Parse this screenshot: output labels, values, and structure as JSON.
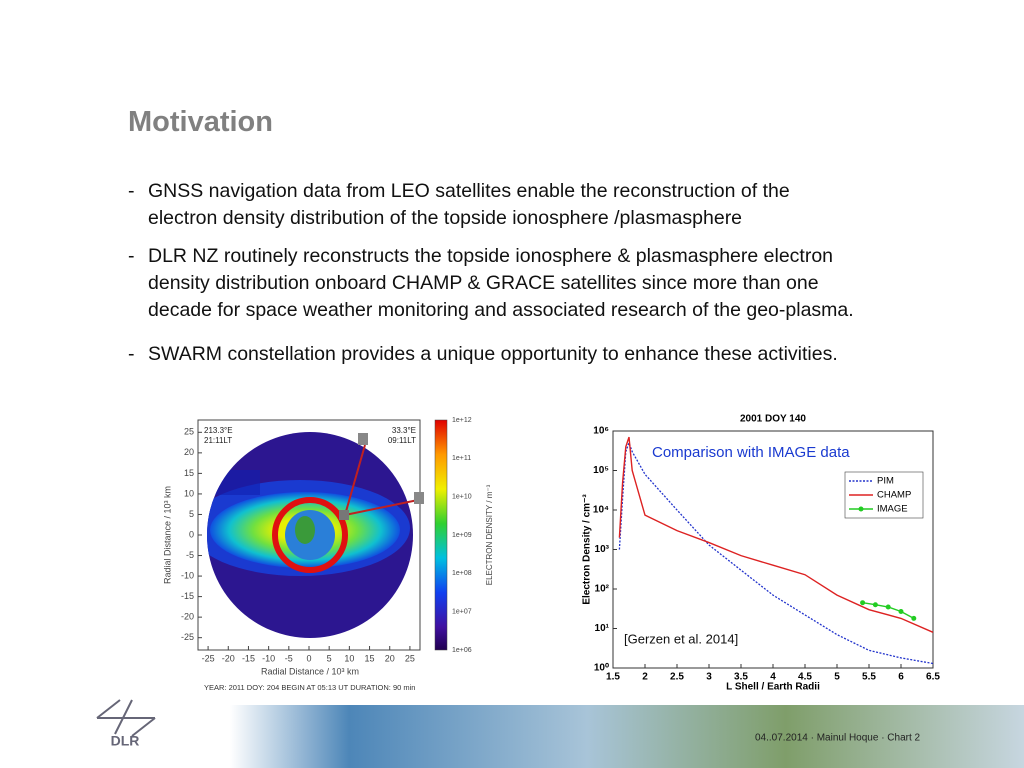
{
  "slide": {
    "title": "Motivation",
    "bullets": [
      [
        "GNSS navigation data from LEO satellites enable the reconstruction of the",
        "electron density distribution of  the topside ionosphere /plasmasphere"
      ],
      [
        "DLR NZ routinely reconstructs the topside ionosphere & plasmasphere electron",
        "density distribution onboard  CHAMP & GRACE satellites since more than one",
        "decade for space weather monitoring and associated research of the geo-plasma."
      ],
      [
        "SWARM constellation provides a unique opportunity to enhance these activities."
      ]
    ],
    "logo": "DLR",
    "footer": "04..07.2014 ·  Mainul Hoque ·  Chart 2"
  },
  "left_figure": {
    "corner_labels": [
      "213.3°E",
      "21:11LT",
      "33.3°E",
      "09:11LT"
    ],
    "xlim": [
      -27.5,
      27.5
    ],
    "ylim": [
      -28,
      28
    ],
    "xticks": [
      -25,
      -20,
      -15,
      -10,
      -5,
      0,
      5,
      10,
      15,
      20,
      25
    ],
    "yticks": [
      -25,
      -20,
      -15,
      -10,
      -5,
      0,
      5,
      10,
      15,
      20,
      25
    ],
    "xlabel": "Radial Distance  /  10³ km",
    "ylabel": "Radial Distance  /  10³ km",
    "colorbar_ticks": [
      "1e+12",
      "1e+11",
      "1e+10",
      "1e+09",
      "1e+08",
      "1e+07",
      "1e+06"
    ],
    "colorbar_label": "ELECTRON DENSITY  /  m⁻³",
    "caption": "YEAR: 2011  DOY: 204   BEGIN AT 05:13 UT   DURATION: 90 min"
  },
  "chart_data": {
    "type": "line",
    "title": "2001 DOY 140",
    "xlabel": "L Shell / Earth Radii",
    "ylabel": "Electron Density / cm⁻³",
    "annotations": [
      "Comparison with IMAGE data",
      "[Gerzen et al. 2014]"
    ],
    "xlim": [
      1.5,
      6.5
    ],
    "xticks": [
      1.5,
      2,
      2.5,
      3,
      3.5,
      4,
      4.5,
      5,
      5.5,
      6,
      6.5
    ],
    "ylim": [
      1,
      1000000
    ],
    "yscale": "log",
    "yticks": [
      {
        "value": 1,
        "label": "10⁰"
      },
      {
        "value": 10,
        "label": "10¹"
      },
      {
        "value": 100,
        "label": "10²"
      },
      {
        "value": 1000,
        "label": "10³"
      },
      {
        "value": 10000,
        "label": "10⁴"
      },
      {
        "value": 100000,
        "label": "10⁵"
      },
      {
        "value": 1000000,
        "label": "10⁶"
      }
    ],
    "legend": "upper right",
    "series": [
      {
        "name": "PIM",
        "color": "#2233cc",
        "style": "dotted",
        "x": [
          1.6,
          1.65,
          1.7,
          1.75,
          1.8,
          2,
          2.5,
          3,
          3.5,
          4,
          4.5,
          5,
          5.5,
          6,
          6.5
        ],
        "values": [
          1000,
          20000,
          300000,
          500000,
          300000,
          80000,
          10000,
          1300,
          300,
          70,
          22,
          7,
          2.8,
          1.8,
          1.3
        ]
      },
      {
        "name": "CHAMP",
        "color": "#dd2222",
        "style": "solid",
        "x": [
          1.6,
          1.65,
          1.7,
          1.75,
          1.8,
          2,
          2.5,
          3,
          3.5,
          4,
          4.5,
          5,
          5.5,
          6,
          6.5
        ],
        "values": [
          2000,
          50000,
          400000,
          700000,
          100000,
          7400,
          3000,
          1500,
          700,
          400,
          230,
          70,
          30,
          18,
          8
        ]
      },
      {
        "name": "IMAGE",
        "color": "#22cc22",
        "style": "markers",
        "x": [
          5.4,
          5.6,
          5.8,
          6.0,
          6.2
        ],
        "values": [
          45,
          40,
          35,
          27,
          18
        ]
      }
    ]
  }
}
